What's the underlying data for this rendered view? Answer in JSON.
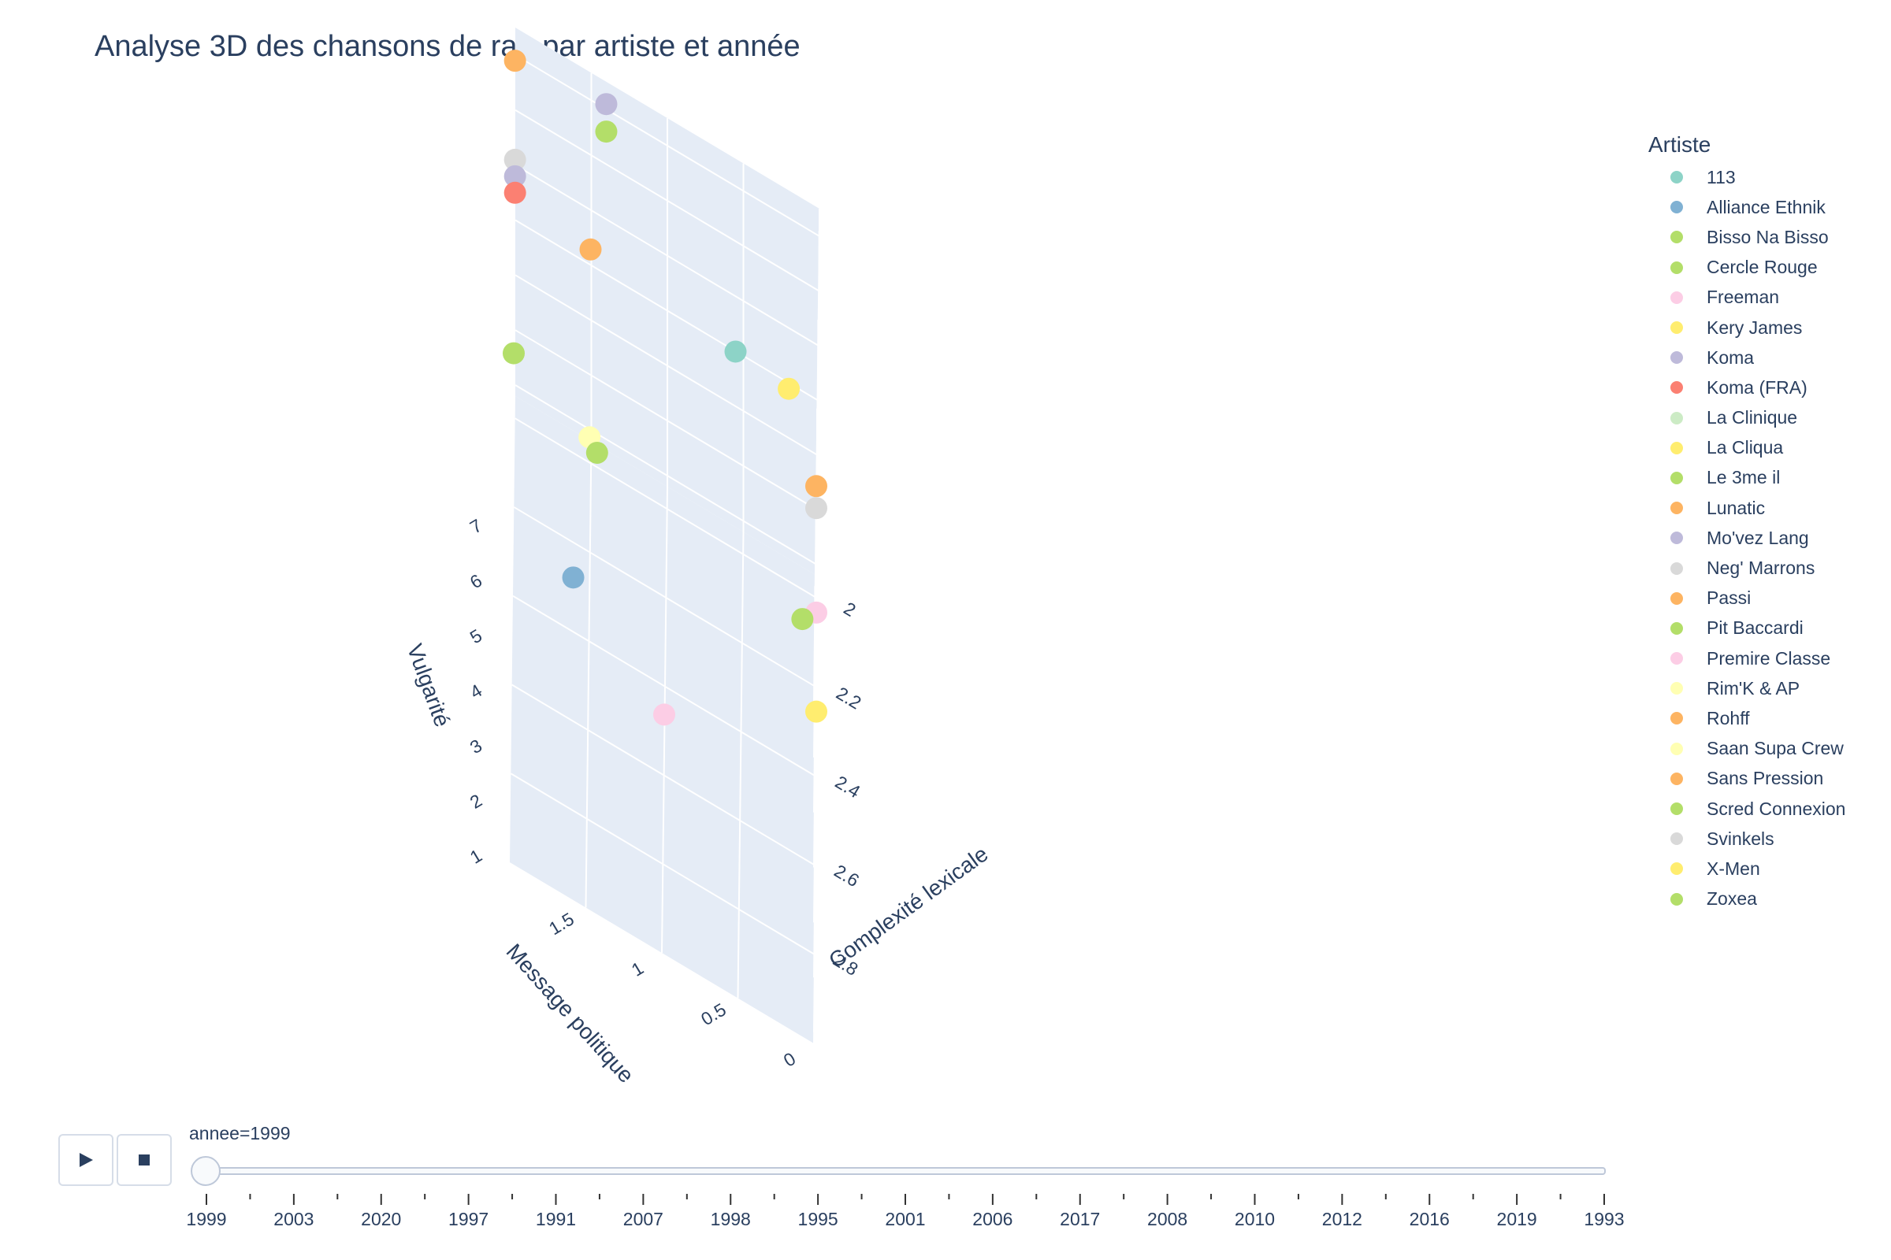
{
  "title": "Analyse 3D des chansons de rap par artiste et année",
  "legend": {
    "title": "Artiste",
    "items": [
      {
        "name": "113",
        "color": "#8dd3c7"
      },
      {
        "name": "Alliance Ethnik",
        "color": "#80b1d3"
      },
      {
        "name": "Bisso Na Bisso",
        "color": "#b3de69"
      },
      {
        "name": "Cercle Rouge",
        "color": "#b3de69"
      },
      {
        "name": "Freeman",
        "color": "#fccde5"
      },
      {
        "name": "Kery James",
        "color": "#ffed6f"
      },
      {
        "name": "Koma",
        "color": "#bebada"
      },
      {
        "name": "Koma (FRA)",
        "color": "#fb8072"
      },
      {
        "name": "La Clinique",
        "color": "#ccebc5"
      },
      {
        "name": "La Cliqua",
        "color": "#ffed6f"
      },
      {
        "name": "Le 3me il",
        "color": "#b3de69"
      },
      {
        "name": "Lunatic",
        "color": "#fdb462"
      },
      {
        "name": "Mo've​z Lang",
        "color": "#bebada"
      },
      {
        "name": "Neg' Marrons",
        "color": "#d9d9d9"
      },
      {
        "name": "Passi",
        "color": "#fdb462"
      },
      {
        "name": "Pit Baccardi",
        "color": "#b3de69"
      },
      {
        "name": "Premire Classe",
        "color": "#fccde5"
      },
      {
        "name": "Rim'K & AP",
        "color": "#ffffb3"
      },
      {
        "name": "Rohff",
        "color": "#fdb462"
      },
      {
        "name": "Saan Supa Crew",
        "color": "#ffffb3"
      },
      {
        "name": "Sans Pression",
        "color": "#fdb462"
      },
      {
        "name": "Scred Connexion",
        "color": "#b3de69"
      },
      {
        "name": "Svinkels",
        "color": "#d9d9d9"
      },
      {
        "name": "X-Men",
        "color": "#ffed6f"
      },
      {
        "name": "Zoxea",
        "color": "#b3de69"
      }
    ]
  },
  "controls": {
    "play_icon": "play-icon",
    "stop_icon": "stop-icon"
  },
  "slider": {
    "label": "annee=1999",
    "steps": [
      "1999",
      "2003",
      "2020",
      "1997",
      "1991",
      "2007",
      "1998",
      "1995",
      "2001",
      "2006",
      "2017",
      "2008",
      "2010",
      "2012",
      "2016",
      "2019",
      "1993"
    ]
  },
  "chart_data": {
    "type": "scatter3d",
    "axes": {
      "x": {
        "label": "Complexité lexicale",
        "ticks": [
          "2",
          "2.2",
          "2.4",
          "2.6",
          "2.8"
        ],
        "range": [
          1.95,
          3.0
        ]
      },
      "y": {
        "label": "Message politique",
        "ticks": [
          "0",
          "0.5",
          "1",
          "1.5"
        ],
        "range": [
          0,
          2.0
        ]
      },
      "z": {
        "label": "Vulgarité",
        "ticks": [
          "1",
          "2",
          "3",
          "4",
          "5",
          "6",
          "7"
        ],
        "range": [
          0.8,
          7.5
        ]
      }
    },
    "points": [
      {
        "artist": "Passi",
        "x": 2.55,
        "y": 0.0,
        "z": 7.3
      },
      {
        "artist": "Svinkels",
        "x": 2.55,
        "y": 0.0,
        "z": 6.9
      },
      {
        "artist": "Premire Classe",
        "x": 2.55,
        "y": 0.0,
        "z": 5.0
      },
      {
        "artist": "X-Men",
        "x": 2.55,
        "y": 0.0,
        "z": 3.2
      },
      {
        "artist": "Freeman",
        "x": 2.55,
        "y": 1.0,
        "z": 1.5
      },
      {
        "artist": "Lunatic",
        "x": 2.0,
        "y": 2.0,
        "z": 7.3
      },
      {
        "artist": "Rohff",
        "x": 2.1,
        "y": 1.5,
        "z": 5.5
      },
      {
        "artist": "Neg' Marrons",
        "x": 2.0,
        "y": 2.0,
        "z": 5.5
      },
      {
        "artist": "Koma",
        "x": 2.0,
        "y": 2.0,
        "z": 5.2
      },
      {
        "artist": "Koma (FRA)",
        "x": 2.0,
        "y": 2.0,
        "z": 4.9
      },
      {
        "artist": "Mo'vez Lang",
        "x": 2.0,
        "y": 1.4,
        "z": 7.5
      },
      {
        "artist": "Pit Baccardi",
        "x": 2.0,
        "y": 1.4,
        "z": 7.0
      },
      {
        "artist": "Bisso Na Bisso",
        "x": 2.25,
        "y": 2.0,
        "z": 4.0
      },
      {
        "artist": "Saan Supa Crew",
        "x": 2.3,
        "y": 1.5,
        "z": 3.7
      },
      {
        "artist": "Zoxea",
        "x": 2.3,
        "y": 1.45,
        "z": 3.5
      },
      {
        "artist": "Alliance Ethnik",
        "x": 2.5,
        "y": 1.6,
        "z": 2.6
      },
      {
        "artist": "113",
        "x": 2.0,
        "y": 0.55,
        "z": 4.4
      },
      {
        "artist": "Kery James",
        "x": 2.0,
        "y": 0.2,
        "z": 4.3
      },
      {
        "artist": "Cercle Rouge",
        "x": 2.3,
        "y": 0.1,
        "z": 2.7
      }
    ]
  }
}
